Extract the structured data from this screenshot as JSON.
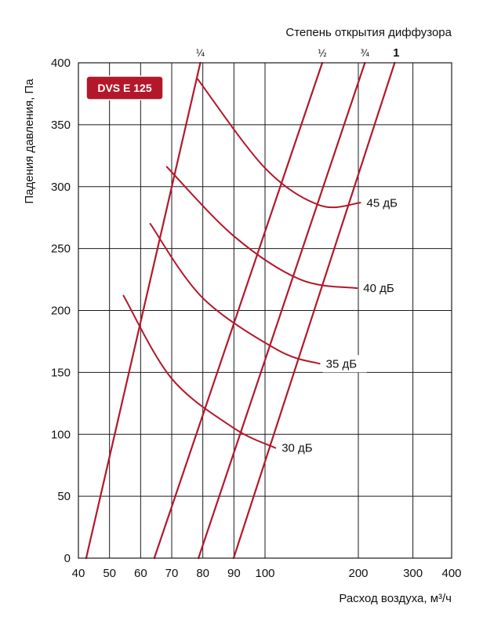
{
  "chart_data": {
    "type": "line",
    "badge": "DVS E 125",
    "top_title": "Степень открытия диффузора",
    "xlabel": "Расход воздуха, м³/ч",
    "ylabel": "Падения давления, Па",
    "x_scale": "log",
    "xlim": [
      40,
      400
    ],
    "ylim": [
      0,
      400
    ],
    "x_ticks": [
      40,
      50,
      60,
      70,
      80,
      90,
      100,
      200,
      300,
      400
    ],
    "y_ticks": [
      0,
      50,
      100,
      150,
      200,
      250,
      300,
      350,
      400
    ],
    "grid": true,
    "colors": {
      "curve": "#b3182a",
      "grid": "#1a1a1a",
      "badge": "#b3182a"
    },
    "series": [
      {
        "name": "¼",
        "points": [
          [
            42.5,
            0
          ],
          [
            79.2,
            400
          ]
        ]
      },
      {
        "name": "½",
        "points": [
          [
            64.4,
            0
          ],
          [
            153,
            400
          ]
        ]
      },
      {
        "name": "¾",
        "points": [
          [
            78.6,
            0
          ],
          [
            210,
            400
          ]
        ]
      },
      {
        "name": "1",
        "points": [
          [
            89.9,
            0
          ],
          [
            262,
            400
          ]
        ]
      }
    ],
    "noise_curves": [
      {
        "name": "45 дБ",
        "points": [
          [
            78.3,
            387
          ],
          [
            100,
            315
          ],
          [
            150,
            285
          ],
          [
            203,
            287
          ]
        ]
      },
      {
        "name": "40 дБ",
        "points": [
          [
            68.4,
            316
          ],
          [
            90,
            260
          ],
          [
            130,
            225
          ],
          [
            198,
            218
          ]
        ]
      },
      {
        "name": "35 дБ",
        "points": [
          [
            63.1,
            270
          ],
          [
            80,
            210
          ],
          [
            110,
            168
          ],
          [
            150,
            157
          ]
        ]
      },
      {
        "name": "30 дБ",
        "points": [
          [
            54.5,
            212
          ],
          [
            70,
            145
          ],
          [
            90,
            105
          ],
          [
            108,
            89
          ]
        ]
      }
    ]
  }
}
